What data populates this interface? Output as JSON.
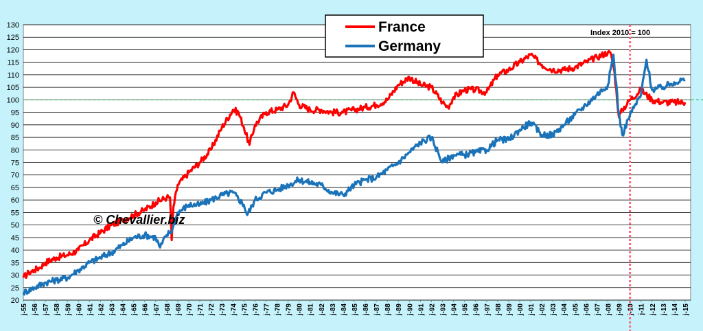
{
  "chart_data": {
    "type": "line",
    "title": "",
    "xlabel": "",
    "ylabel": "",
    "ylim": [
      20,
      130
    ],
    "yticks": [
      20,
      25,
      30,
      35,
      40,
      45,
      50,
      55,
      60,
      65,
      70,
      75,
      80,
      85,
      90,
      95,
      100,
      105,
      110,
      115,
      120,
      125,
      130
    ],
    "xlim": [
      1955.0,
      2015.5
    ],
    "x_tick_labels": [
      "j-55",
      "j-56",
      "j-57",
      "j-58",
      "j-59",
      "j-60",
      "j-61",
      "j-62",
      "j-63",
      "j-64",
      "j-65",
      "j-66",
      "j-67",
      "j-68",
      "j-69",
      "j-70",
      "j-71",
      "j-72",
      "j-73",
      "j-74",
      "j-75",
      "j-76",
      "j-77",
      "j-78",
      "j-79",
      "j-80",
      "j-81",
      "j-82",
      "j-83",
      "j-84",
      "j-85",
      "j-86",
      "j-87",
      "j-88",
      "j-89",
      "j-90",
      "j-91",
      "j-92",
      "j-93",
      "j-94",
      "j-95",
      "j-96",
      "j-97",
      "j-98",
      "j-99",
      "j-00",
      "j-01",
      "j-02",
      "j-03",
      "j-04",
      "j-05",
      "j-06",
      "j-07",
      "j-08",
      "j-09",
      "j-10",
      "j-11",
      "j-12",
      "j-13",
      "j-14",
      "j-15"
    ],
    "grid": true,
    "legend_position": "top-center",
    "series": [
      {
        "name": "France",
        "color": "#ff0000",
        "x": [
          1955.0,
          1955.5,
          1956.0,
          1956.5,
          1957.0,
          1958.0,
          1959.0,
          1960.0,
          1961.0,
          1962.0,
          1963.0,
          1964.0,
          1965.0,
          1966.0,
          1967.0,
          1968.0,
          1968.3,
          1968.45,
          1968.6,
          1969.0,
          1970.0,
          1971.0,
          1972.0,
          1973.0,
          1974.0,
          1974.5,
          1975.0,
          1975.5,
          1976.0,
          1977.0,
          1978.0,
          1979.0,
          1979.5,
          1980.0,
          1981.0,
          1982.0,
          1983.0,
          1984.0,
          1985.0,
          1986.0,
          1987.0,
          1988.0,
          1989.0,
          1990.0,
          1991.0,
          1992.0,
          1993.0,
          1993.5,
          1994.0,
          1995.0,
          1996.0,
          1997.0,
          1998.0,
          1999.0,
          2000.0,
          2001.0,
          2002.0,
          2003.0,
          2004.0,
          2005.0,
          2006.0,
          2007.0,
          2008.0,
          2008.3,
          2008.6,
          2009.0,
          2009.3,
          2010.0,
          2011.0,
          2012.0,
          2013.0,
          2014.0,
          2015.0
        ],
        "values": [
          29,
          31,
          32,
          33,
          35,
          37,
          38,
          40,
          44,
          47,
          50,
          52,
          54,
          56,
          59,
          61,
          61,
          44,
          57,
          66,
          71,
          75,
          80,
          89,
          96,
          95,
          89,
          82,
          90,
          95,
          96,
          98,
          103,
          98,
          96,
          96,
          95,
          95,
          96,
          97,
          98,
          100,
          106,
          109,
          106,
          105,
          99,
          97,
          101,
          104,
          104,
          103,
          110,
          112,
          115,
          118,
          114,
          112,
          112,
          113,
          115,
          117,
          119,
          118,
          111,
          93,
          96,
          100,
          104,
          100,
          99,
          99,
          99
        ]
      },
      {
        "name": "Germany",
        "color": "#1a73b9",
        "x": [
          1955.0,
          1956.0,
          1957.0,
          1958.0,
          1959.0,
          1960.0,
          1961.0,
          1962.0,
          1963.0,
          1964.0,
          1965.0,
          1966.0,
          1967.0,
          1967.4,
          1968.0,
          1968.5,
          1969.0,
          1970.0,
          1971.0,
          1972.0,
          1973.0,
          1974.0,
          1975.0,
          1975.3,
          1976.0,
          1977.0,
          1978.0,
          1979.0,
          1980.0,
          1981.0,
          1982.0,
          1983.0,
          1984.0,
          1985.0,
          1986.0,
          1987.0,
          1988.0,
          1989.0,
          1990.0,
          1991.0,
          1992.0,
          1993.0,
          1994.0,
          1995.0,
          1996.0,
          1997.0,
          1998.0,
          1999.0,
          2000.0,
          2001.0,
          2002.0,
          2003.0,
          2004.0,
          2005.0,
          2006.0,
          2007.0,
          2008.0,
          2008.5,
          2009.0,
          2009.3,
          2010.0,
          2011.0,
          2011.5,
          2012.0,
          2013.0,
          2014.0,
          2015.0
        ],
        "values": [
          23,
          25,
          27,
          28,
          29,
          32,
          35,
          37,
          39,
          42,
          45,
          46,
          45,
          41,
          46,
          48,
          55,
          58,
          58,
          60,
          62,
          63,
          58,
          54,
          60,
          63,
          64,
          66,
          68,
          67,
          66,
          63,
          62,
          66,
          68,
          69,
          72,
          75,
          79,
          83,
          85,
          75,
          78,
          78,
          79,
          80,
          84,
          84,
          88,
          91,
          86,
          86,
          90,
          94,
          98,
          102,
          106,
          118,
          94,
          86,
          94,
          102,
          116,
          104,
          105,
          107,
          108
        ]
      }
    ],
    "annotations": [
      "Index 2010 = 100",
      "© Chevallier.biz"
    ],
    "reference_lines": [
      {
        "axis": "y",
        "value": 100,
        "color": "#3cb371",
        "style": "dashed"
      },
      {
        "axis": "x",
        "value": 2010.0,
        "color": "#ff6680",
        "style": "dotted"
      }
    ]
  }
}
